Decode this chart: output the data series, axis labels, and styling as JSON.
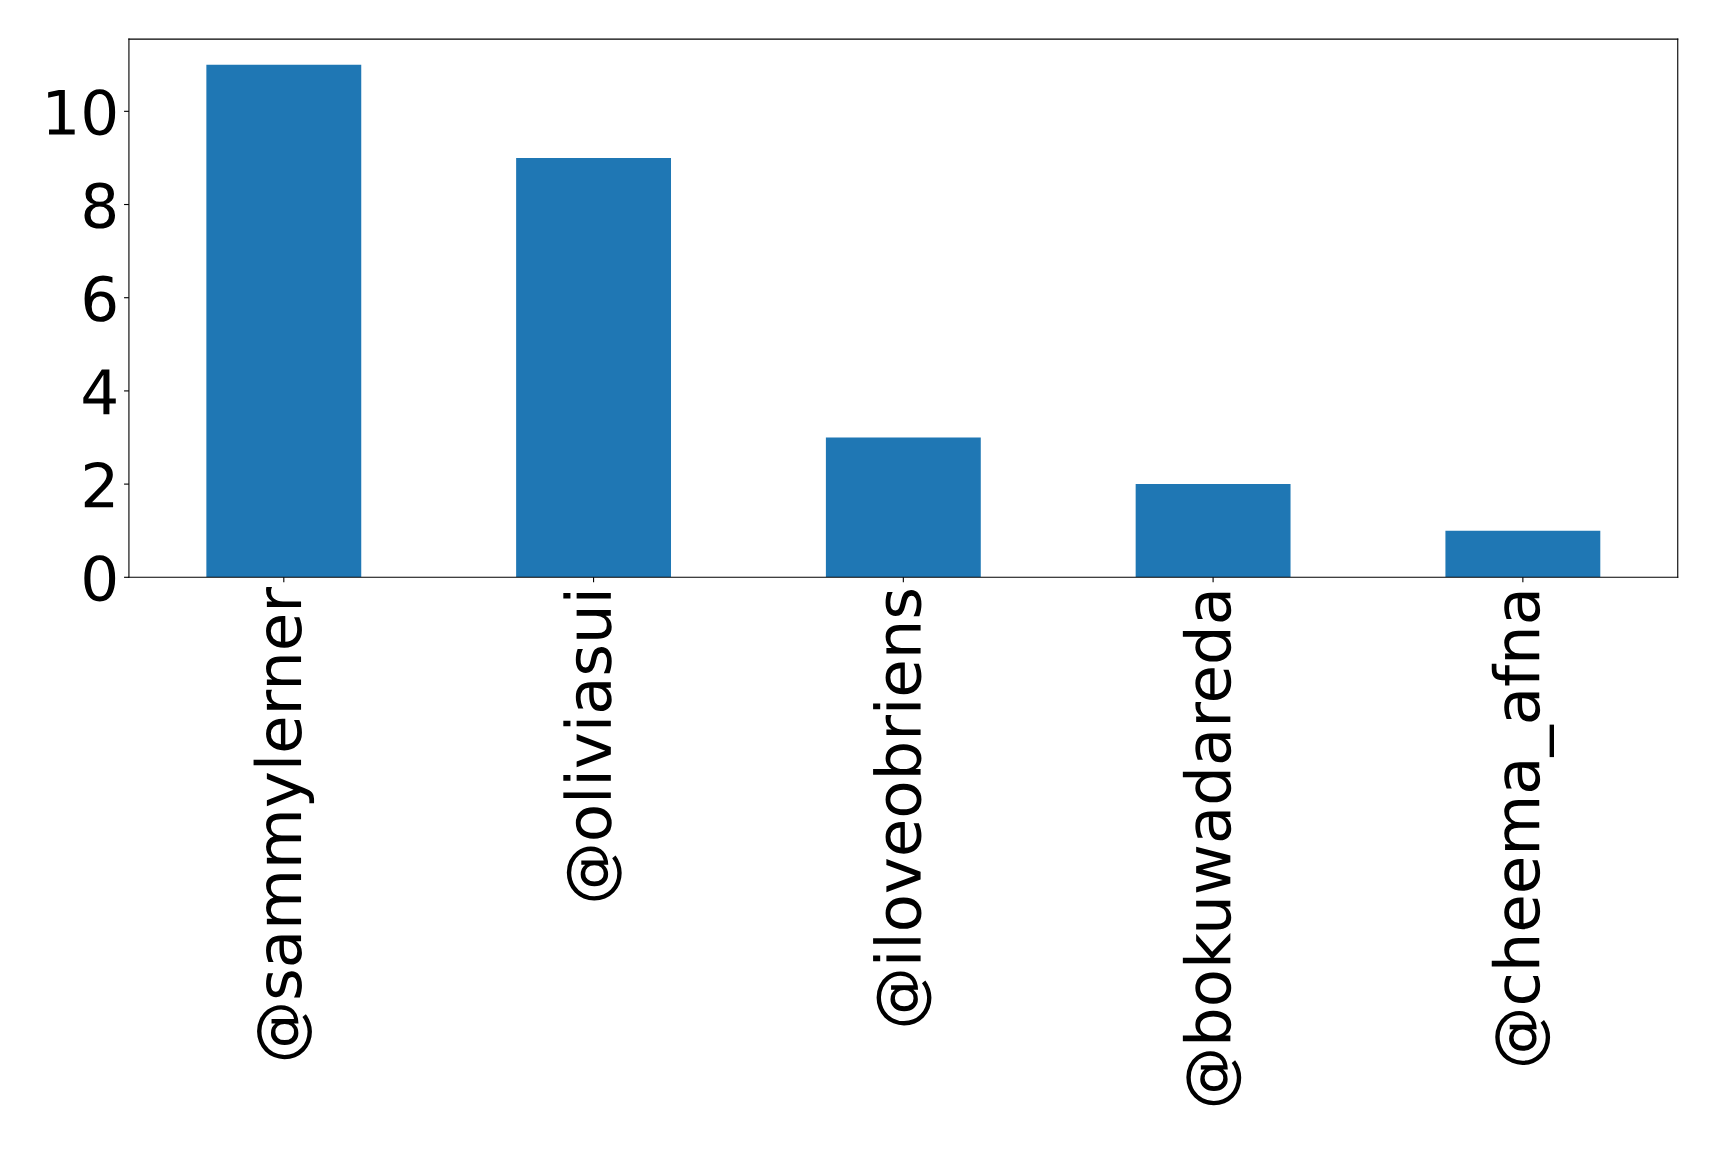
{
  "chart_data": {
    "type": "bar",
    "categories": [
      "@sammylerner",
      "@oliviasui",
      "@iloveobriens",
      "@bokuwadareda",
      "@cheema_afna"
    ],
    "values": [
      11,
      9,
      3,
      2,
      1
    ],
    "color": "#1f77b4",
    "ylim": [
      0,
      11.55
    ],
    "yticks": [
      0,
      2,
      4,
      6,
      8,
      10
    ],
    "grid": false
  }
}
